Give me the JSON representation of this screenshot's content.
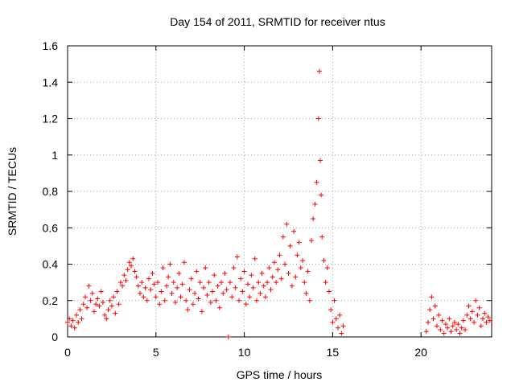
{
  "chart_data": {
    "type": "scatter",
    "title": "Day 154 of 2011, SRMTID for receiver ntus",
    "xlabel": "GPS time / hours",
    "ylabel": "SRMTID / TECUs",
    "xlim": [
      0,
      24
    ],
    "ylim": [
      0,
      1.6
    ],
    "x_ticks": [
      0,
      5,
      10,
      15,
      20
    ],
    "x_tick_labels": [
      "0",
      "5",
      "10",
      "15",
      "20"
    ],
    "y_ticks": [
      0,
      0.2,
      0.4,
      0.6,
      0.8,
      1,
      1.2,
      1.4,
      1.6
    ],
    "y_tick_labels": [
      "0",
      "0.2",
      "0.4",
      "0.6",
      "0.8",
      "1",
      "1.2",
      "1.4",
      "1.6"
    ],
    "grid": true,
    "marker": "plus",
    "color": "#ff0000",
    "series": [
      {
        "name": "SRMTID",
        "points": [
          [
            0.0,
            0.08
          ],
          [
            0.1,
            0.1
          ],
          [
            0.2,
            0.06
          ],
          [
            0.3,
            0.09
          ],
          [
            0.4,
            0.05
          ],
          [
            0.5,
            0.12
          ],
          [
            0.6,
            0.08
          ],
          [
            0.7,
            0.15
          ],
          [
            0.8,
            0.1
          ],
          [
            0.9,
            0.18
          ],
          [
            1.0,
            0.22
          ],
          [
            1.1,
            0.16
          ],
          [
            1.2,
            0.28
          ],
          [
            1.3,
            0.2
          ],
          [
            1.4,
            0.24
          ],
          [
            1.5,
            0.14
          ],
          [
            1.6,
            0.18
          ],
          [
            1.7,
            0.21
          ],
          [
            1.8,
            0.17
          ],
          [
            1.9,
            0.25
          ],
          [
            2.0,
            0.19
          ],
          [
            2.1,
            0.12
          ],
          [
            2.2,
            0.1
          ],
          [
            2.3,
            0.15
          ],
          [
            2.4,
            0.2
          ],
          [
            2.5,
            0.17
          ],
          [
            2.6,
            0.22
          ],
          [
            2.7,
            0.13
          ],
          [
            2.8,
            0.25
          ],
          [
            2.9,
            0.18
          ],
          [
            3.0,
            0.3
          ],
          [
            3.1,
            0.28
          ],
          [
            3.2,
            0.34
          ],
          [
            3.3,
            0.31
          ],
          [
            3.4,
            0.37
          ],
          [
            3.5,
            0.41
          ],
          [
            3.6,
            0.39
          ],
          [
            3.7,
            0.43
          ],
          [
            3.8,
            0.36
          ],
          [
            3.9,
            0.33
          ],
          [
            4.0,
            0.28
          ],
          [
            4.1,
            0.24
          ],
          [
            4.2,
            0.3
          ],
          [
            4.3,
            0.22
          ],
          [
            4.4,
            0.27
          ],
          [
            4.5,
            0.2
          ],
          [
            4.6,
            0.32
          ],
          [
            4.7,
            0.26
          ],
          [
            4.8,
            0.35
          ],
          [
            4.9,
            0.29
          ],
          [
            5.0,
            0.22
          ],
          [
            5.1,
            0.3
          ],
          [
            5.2,
            0.18
          ],
          [
            5.3,
            0.25
          ],
          [
            5.4,
            0.38
          ],
          [
            5.5,
            0.2
          ],
          [
            5.6,
            0.28
          ],
          [
            5.7,
            0.33
          ],
          [
            5.8,
            0.4
          ],
          [
            5.9,
            0.24
          ],
          [
            6.0,
            0.3
          ],
          [
            6.1,
            0.19
          ],
          [
            6.2,
            0.27
          ],
          [
            6.3,
            0.35
          ],
          [
            6.4,
            0.22
          ],
          [
            6.5,
            0.29
          ],
          [
            6.6,
            0.41
          ],
          [
            6.7,
            0.2
          ],
          [
            6.8,
            0.15
          ],
          [
            6.9,
            0.26
          ],
          [
            7.0,
            0.32
          ],
          [
            7.1,
            0.18
          ],
          [
            7.2,
            0.24
          ],
          [
            7.3,
            0.36
          ],
          [
            7.4,
            0.21
          ],
          [
            7.5,
            0.3
          ],
          [
            7.6,
            0.14
          ],
          [
            7.7,
            0.27
          ],
          [
            7.8,
            0.38
          ],
          [
            7.9,
            0.23
          ],
          [
            8.0,
            0.3
          ],
          [
            8.1,
            0.19
          ],
          [
            8.2,
            0.25
          ],
          [
            8.3,
            0.34
          ],
          [
            8.4,
            0.2
          ],
          [
            8.5,
            0.28
          ],
          [
            8.6,
            0.16
          ],
          [
            8.7,
            0.3
          ],
          [
            8.8,
            0.24
          ],
          [
            8.9,
            0.35
          ],
          [
            9.0,
            0.26
          ],
          [
            9.1,
            0.0
          ],
          [
            9.2,
            0.3
          ],
          [
            9.3,
            0.22
          ],
          [
            9.4,
            0.38
          ],
          [
            9.5,
            0.27
          ],
          [
            9.6,
            0.44
          ],
          [
            9.7,
            0.2
          ],
          [
            9.8,
            0.32
          ],
          [
            9.9,
            0.25
          ],
          [
            10.0,
            0.36
          ],
          [
            10.1,
            0.18
          ],
          [
            10.2,
            0.29
          ],
          [
            10.3,
            0.22
          ],
          [
            10.4,
            0.34
          ],
          [
            10.5,
            0.27
          ],
          [
            10.6,
            0.43
          ],
          [
            10.7,
            0.2
          ],
          [
            10.8,
            0.3
          ],
          [
            10.9,
            0.24
          ],
          [
            11.0,
            0.35
          ],
          [
            11.1,
            0.28
          ],
          [
            11.2,
            0.22
          ],
          [
            11.3,
            0.3
          ],
          [
            11.4,
            0.38
          ],
          [
            11.5,
            0.26
          ],
          [
            11.6,
            0.33
          ],
          [
            11.7,
            0.41
          ],
          [
            11.8,
            0.3
          ],
          [
            11.9,
            0.37
          ],
          [
            12.0,
            0.45
          ],
          [
            12.1,
            0.32
          ],
          [
            12.2,
            0.55
          ],
          [
            12.3,
            0.4
          ],
          [
            12.4,
            0.62
          ],
          [
            12.5,
            0.35
          ],
          [
            12.6,
            0.5
          ],
          [
            12.7,
            0.28
          ],
          [
            12.8,
            0.58
          ],
          [
            12.9,
            0.33
          ],
          [
            13.0,
            0.45
          ],
          [
            13.1,
            0.52
          ],
          [
            13.2,
            0.38
          ],
          [
            13.3,
            0.42
          ],
          [
            13.4,
            0.3
          ],
          [
            13.5,
            0.24
          ],
          [
            13.6,
            0.36
          ],
          [
            13.7,
            0.2
          ],
          [
            13.8,
            0.53
          ],
          [
            13.9,
            0.65
          ],
          [
            14.0,
            0.73
          ],
          [
            14.1,
            0.85
          ],
          [
            14.2,
            1.2
          ],
          [
            14.25,
            1.46
          ],
          [
            14.3,
            0.97
          ],
          [
            14.35,
            0.78
          ],
          [
            14.4,
            0.55
          ],
          [
            14.5,
            0.42
          ],
          [
            14.6,
            0.3
          ],
          [
            14.7,
            0.38
          ],
          [
            14.8,
            0.25
          ],
          [
            14.9,
            0.15
          ],
          [
            15.0,
            0.08
          ],
          [
            15.1,
            0.2
          ],
          [
            15.2,
            0.1
          ],
          [
            15.3,
            0.05
          ],
          [
            15.4,
            0.12
          ],
          [
            15.5,
            0.02
          ],
          [
            15.6,
            0.06
          ],
          [
            20.3,
            0.03
          ],
          [
            20.4,
            0.08
          ],
          [
            20.5,
            0.15
          ],
          [
            20.6,
            0.22
          ],
          [
            20.7,
            0.1
          ],
          [
            20.8,
            0.17
          ],
          [
            20.9,
            0.06
          ],
          [
            21.0,
            0.12
          ],
          [
            21.1,
            0.04
          ],
          [
            21.2,
            0.09
          ],
          [
            21.3,
            0.02
          ],
          [
            21.4,
            0.07
          ],
          [
            21.5,
            0.05
          ],
          [
            21.6,
            0.1
          ],
          [
            21.7,
            0.03
          ],
          [
            21.8,
            0.06
          ],
          [
            21.9,
            0.08
          ],
          [
            22.0,
            0.04
          ],
          [
            22.1,
            0.07
          ],
          [
            22.2,
            0.02
          ],
          [
            22.3,
            0.05
          ],
          [
            22.4,
            0.09
          ],
          [
            22.5,
            0.04
          ],
          [
            22.6,
            0.12
          ],
          [
            22.7,
            0.17
          ],
          [
            22.8,
            0.1
          ],
          [
            22.9,
            0.14
          ],
          [
            23.0,
            0.08
          ],
          [
            23.1,
            0.2
          ],
          [
            23.2,
            0.12
          ],
          [
            23.3,
            0.16
          ],
          [
            23.4,
            0.06
          ],
          [
            23.5,
            0.1
          ],
          [
            23.6,
            0.13
          ],
          [
            23.7,
            0.08
          ],
          [
            23.8,
            0.11
          ],
          [
            23.9,
            0.09
          ]
        ]
      }
    ]
  }
}
